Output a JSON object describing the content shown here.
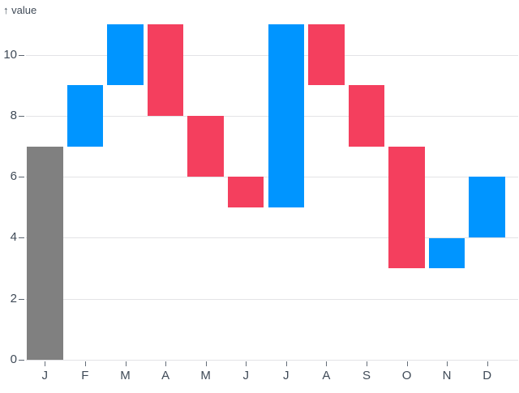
{
  "colors": {
    "increase": "#0095ff",
    "decrease": "#f43f5e",
    "initial": "#808080",
    "grid": "#e3e3e6",
    "axis_text": "#3f4a57",
    "background": "#ffffff"
  },
  "chart_data": {
    "type": "bar",
    "subtype": "waterfall",
    "title": "",
    "xlabel": "",
    "ylabel": "value",
    "y_axis_title": "↑ value",
    "categories": [
      "J",
      "F",
      "M",
      "A",
      "M",
      "J",
      "J",
      "A",
      "S",
      "O",
      "N",
      "D"
    ],
    "bars": [
      {
        "label": "J",
        "start": 0,
        "end": 7,
        "delta": 7,
        "kind": "initial"
      },
      {
        "label": "F",
        "start": 7,
        "end": 9,
        "delta": 2,
        "kind": "increase"
      },
      {
        "label": "M",
        "start": 9,
        "end": 11,
        "delta": 2,
        "kind": "increase"
      },
      {
        "label": "A",
        "start": 11,
        "end": 8,
        "delta": -3,
        "kind": "decrease"
      },
      {
        "label": "M",
        "start": 8,
        "end": 6,
        "delta": -2,
        "kind": "decrease"
      },
      {
        "label": "J",
        "start": 6,
        "end": 5,
        "delta": -1,
        "kind": "decrease"
      },
      {
        "label": "J",
        "start": 5,
        "end": 11,
        "delta": 6,
        "kind": "increase"
      },
      {
        "label": "A",
        "start": 11,
        "end": 9,
        "delta": -2,
        "kind": "decrease"
      },
      {
        "label": "S",
        "start": 9,
        "end": 7,
        "delta": -2,
        "kind": "decrease"
      },
      {
        "label": "O",
        "start": 7,
        "end": 3,
        "delta": -4,
        "kind": "decrease"
      },
      {
        "label": "N",
        "start": 3,
        "end": 4,
        "delta": 1,
        "kind": "increase"
      },
      {
        "label": "D",
        "start": 4,
        "end": 6,
        "delta": 2,
        "kind": "increase"
      }
    ],
    "running_total": [
      7,
      9,
      11,
      8,
      6,
      5,
      11,
      9,
      7,
      3,
      4,
      6
    ],
    "y_ticks": [
      0,
      2,
      4,
      6,
      8,
      10
    ],
    "ylim": [
      0,
      11
    ],
    "grid": true,
    "legend": false
  }
}
